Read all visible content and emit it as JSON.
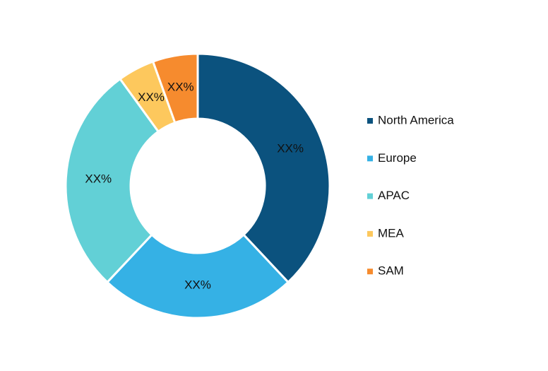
{
  "chart_data": {
    "type": "pie",
    "donut": true,
    "categories": [
      "North America",
      "Europe",
      "APAC",
      "MEA",
      "SAM"
    ],
    "values": [
      38,
      24,
      28,
      4.5,
      5.5
    ],
    "value_labels": [
      "XX%",
      "XX%",
      "XX%",
      "XX%",
      "XX%"
    ],
    "colors": [
      "#0b527e",
      "#35b1e5",
      "#62d0d6",
      "#fdc85d",
      "#f68b2e"
    ],
    "legend": "right"
  }
}
